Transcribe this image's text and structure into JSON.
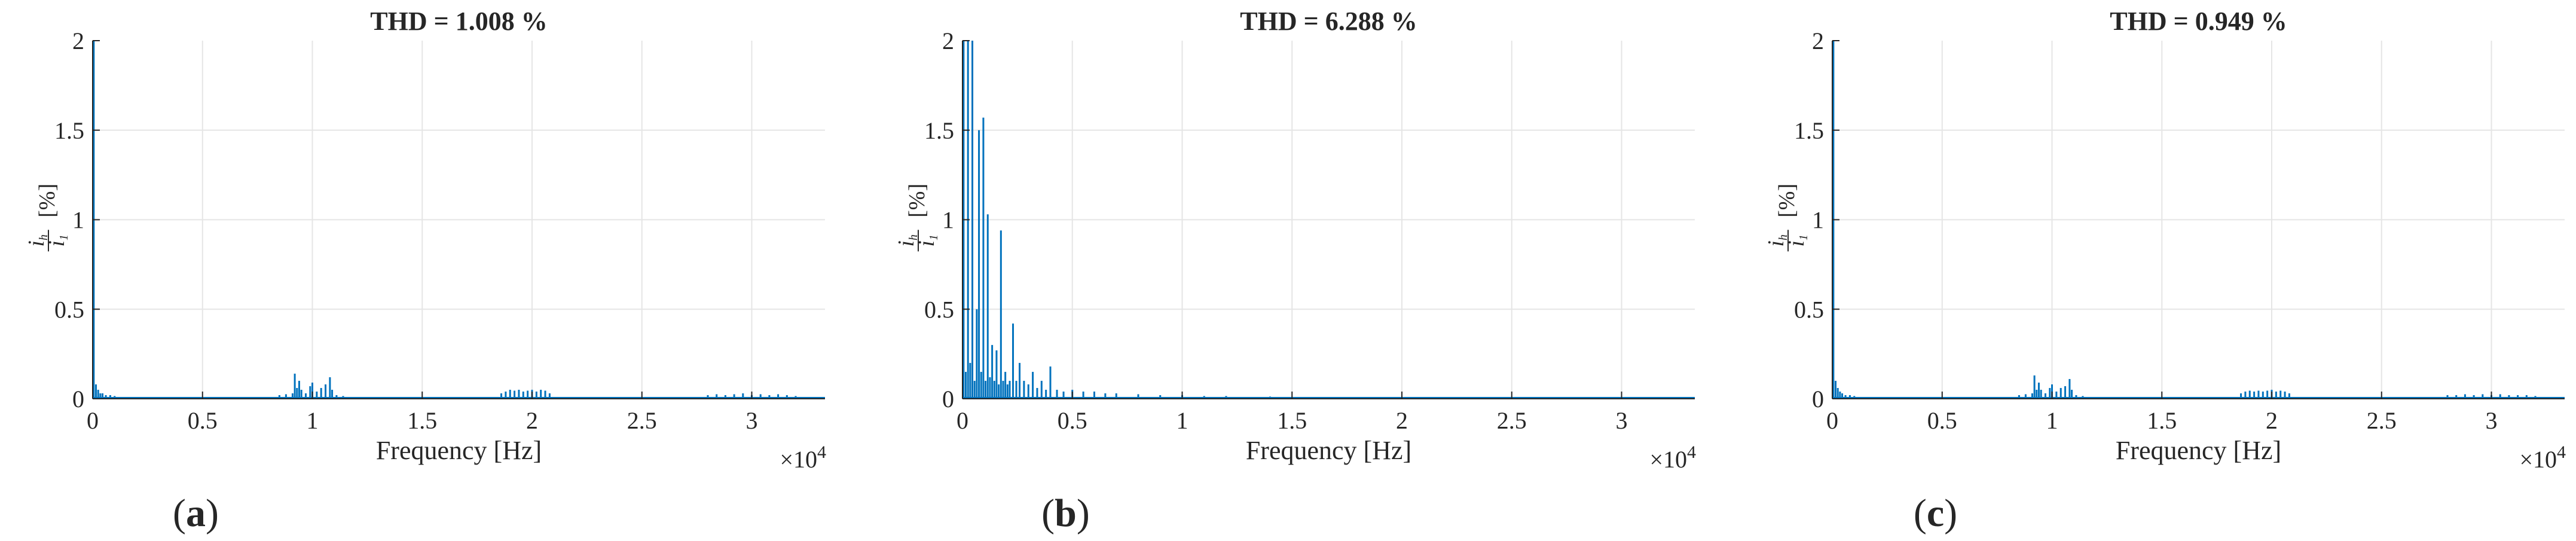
{
  "chart_data": [
    {
      "type": "bar",
      "panel_label": "a",
      "title": "THD = 1.008 %",
      "xlabel": "Frequency [Hz]",
      "ylabel": "i_h / i_1 [%]",
      "x_multiplier": "×10^4",
      "xlim": [
        0,
        33333
      ],
      "ylim": [
        0,
        2
      ],
      "xticks": [
        "0",
        "0.5",
        "1",
        "1.5",
        "2",
        "2.5",
        "3"
      ],
      "yticks": [
        "0",
        "0.5",
        "1",
        "1.5",
        "2"
      ],
      "grid": true,
      "color": "#0072bd",
      "x": [
        50,
        150,
        250,
        350,
        450,
        600,
        800,
        1000,
        1300,
        1700,
        2500,
        4000,
        6000,
        8500,
        8800,
        9100,
        9200,
        9300,
        9400,
        9500,
        9700,
        9900,
        10000,
        10200,
        10400,
        10600,
        10800,
        10900,
        11100,
        11400,
        18600,
        18800,
        19000,
        19200,
        19400,
        19600,
        19800,
        20000,
        20200,
        20400,
        20600,
        20800,
        28000,
        28400,
        28800,
        29200,
        29600,
        30000,
        30400,
        30800,
        31200,
        31600,
        32000
      ],
      "values": [
        2.0,
        0.08,
        0.05,
        0.03,
        0.03,
        0.02,
        0.02,
        0.015,
        0.01,
        0.01,
        0.008,
        0.006,
        0.006,
        0.02,
        0.025,
        0.03,
        0.14,
        0.06,
        0.1,
        0.05,
        0.03,
        0.07,
        0.09,
        0.04,
        0.06,
        0.08,
        0.12,
        0.05,
        0.02,
        0.015,
        0.03,
        0.04,
        0.05,
        0.045,
        0.05,
        0.04,
        0.045,
        0.05,
        0.04,
        0.05,
        0.045,
        0.03,
        0.02,
        0.025,
        0.02,
        0.025,
        0.03,
        0.02,
        0.025,
        0.02,
        0.025,
        0.02,
        0.015
      ]
    },
    {
      "type": "bar",
      "panel_label": "b",
      "title": "THD = 6.288 %",
      "xlabel": "Frequency [Hz]",
      "ylabel": "i_h / i_1 [%]",
      "x_multiplier": "×10^4",
      "xlim": [
        0,
        33333
      ],
      "ylim": [
        0,
        2
      ],
      "xticks": [
        "0",
        "0.5",
        "1",
        "1.5",
        "2",
        "2.5",
        "3"
      ],
      "yticks": [
        "0",
        "0.5",
        "1",
        "1.5",
        "2"
      ],
      "grid": true,
      "color": "#0072bd",
      "x": [
        50,
        150,
        250,
        350,
        450,
        550,
        650,
        750,
        850,
        950,
        1050,
        1150,
        1250,
        1350,
        1450,
        1550,
        1650,
        1750,
        1850,
        1950,
        2050,
        2150,
        2300,
        2450,
        2600,
        2800,
        3000,
        3200,
        3400,
        3600,
        3800,
        4000,
        4300,
        4600,
        5000,
        5500,
        6000,
        6500,
        7000,
        8000,
        9000,
        10000,
        11000,
        12000,
        14000,
        16000,
        18000,
        20000,
        24000,
        28000
      ],
      "values": [
        2.0,
        0.15,
        2.0,
        0.2,
        2.0,
        0.1,
        0.5,
        1.5,
        0.15,
        1.57,
        0.1,
        1.03,
        0.12,
        0.3,
        0.1,
        0.27,
        0.08,
        0.94,
        0.1,
        0.15,
        0.08,
        0.1,
        0.42,
        0.1,
        0.2,
        0.1,
        0.08,
        0.15,
        0.06,
        0.1,
        0.05,
        0.18,
        0.05,
        0.04,
        0.05,
        0.04,
        0.04,
        0.03,
        0.03,
        0.025,
        0.02,
        0.02,
        0.015,
        0.015,
        0.012,
        0.01,
        0.01,
        0.008,
        0.007,
        0.006
      ]
    },
    {
      "type": "bar",
      "panel_label": "c",
      "title": "THD = 0.949 %",
      "xlabel": "Frequency [Hz]",
      "ylabel": "i_h / i_1 [%]",
      "x_multiplier": "×10^4",
      "xlim": [
        0,
        33333
      ],
      "ylim": [
        0,
        2
      ],
      "xticks": [
        "0",
        "0.5",
        "1",
        "1.5",
        "2",
        "2.5",
        "3"
      ],
      "yticks": [
        "0",
        "0.5",
        "1",
        "1.5",
        "2"
      ],
      "grid": true,
      "color": "#0072bd",
      "x": [
        50,
        150,
        250,
        350,
        450,
        600,
        800,
        1000,
        1300,
        1700,
        2500,
        4000,
        6000,
        8500,
        8800,
        9100,
        9200,
        9300,
        9400,
        9500,
        9700,
        9900,
        10000,
        10200,
        10400,
        10600,
        10800,
        10900,
        11100,
        11400,
        18600,
        18800,
        19000,
        19200,
        19400,
        19600,
        19800,
        20000,
        20200,
        20400,
        20600,
        20800,
        28000,
        28400,
        28800,
        29200,
        29600,
        30000,
        30400,
        30800,
        31200,
        31600,
        32000
      ],
      "values": [
        2.0,
        0.1,
        0.06,
        0.04,
        0.03,
        0.02,
        0.02,
        0.015,
        0.01,
        0.01,
        0.008,
        0.006,
        0.006,
        0.02,
        0.025,
        0.03,
        0.13,
        0.05,
        0.09,
        0.05,
        0.03,
        0.06,
        0.08,
        0.04,
        0.06,
        0.07,
        0.11,
        0.05,
        0.02,
        0.015,
        0.03,
        0.04,
        0.045,
        0.04,
        0.045,
        0.04,
        0.045,
        0.05,
        0.04,
        0.045,
        0.04,
        0.03,
        0.02,
        0.02,
        0.025,
        0.02,
        0.025,
        0.02,
        0.025,
        0.02,
        0.02,
        0.02,
        0.015
      ]
    }
  ]
}
